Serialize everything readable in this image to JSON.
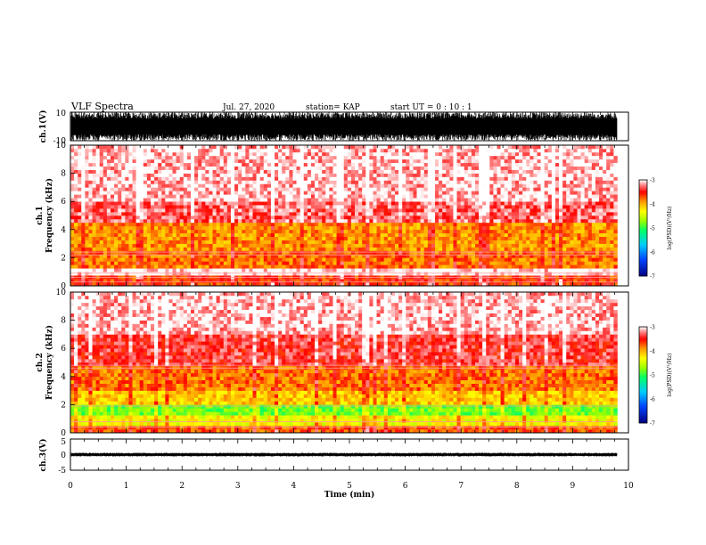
{
  "header": {
    "title": "VLF Spectra",
    "date": "Jul. 27, 2020",
    "station": "station= KAP",
    "start_ut": "start  UT =   0  : 10 : 1"
  },
  "colors": {
    "colormap": [
      "#000080",
      "#0044ff",
      "#00ccff",
      "#00ff66",
      "#99ff00",
      "#ffff00",
      "#ff9900",
      "#ff0000",
      "#ff8888",
      "#ffffff"
    ],
    "trace": "#000000",
    "axis": "#000000"
  },
  "chart_data": [
    {
      "type": "line",
      "panel": "ch1-waveform",
      "ylabel": "ch.1(V)",
      "ylim": [
        -10,
        10
      ],
      "y_ticks": [
        "10",
        "-10"
      ],
      "xlim": [
        0,
        10
      ],
      "description_series": "dense saturated waveform oscillating between about -10 V and 10 V",
      "x": [
        0,
        1,
        2,
        3,
        4,
        5,
        6,
        7,
        8,
        9,
        9.8
      ],
      "y_envelope_min": [
        -10,
        -10,
        -10,
        -10,
        -10,
        -10,
        -10,
        -10,
        -10,
        -10,
        -10
      ],
      "y_envelope_max": [
        10,
        10,
        10,
        10,
        10,
        10,
        10,
        10,
        10,
        10,
        10
      ]
    },
    {
      "type": "heatmap",
      "panel": "ch1-spectrogram",
      "ylabel": "ch.1\nFrequency  (kHz)",
      "ylim": [
        0,
        10
      ],
      "y_ticks": [
        "0",
        "2",
        "4",
        "6",
        "8",
        "10"
      ],
      "xlim": [
        0,
        10
      ],
      "data_end_min": 9.8,
      "colorbar": {
        "label": "log(PSD)(V²/Hz)",
        "range": [
          -7,
          -3
        ],
        "ticks": [
          "-3",
          "-4",
          "-5",
          "-6",
          "-7"
        ]
      },
      "band_levels": [
        {
          "freq_khz": [
            0.0,
            0.8
          ],
          "log_psd": -3.6
        },
        {
          "freq_khz": [
            0.8,
            1.2
          ],
          "log_psd": -3.0
        },
        {
          "freq_khz": [
            1.2,
            2.5
          ],
          "log_psd": -3.8
        },
        {
          "freq_khz": [
            2.5,
            4.5
          ],
          "log_psd": -3.9
        },
        {
          "freq_khz": [
            4.5,
            6.0
          ],
          "log_psd": -3.3
        },
        {
          "freq_khz": [
            6.0,
            10.0
          ],
          "log_psd": -3.1
        }
      ],
      "lines_khz": [
        0.3,
        0.6,
        0.9,
        2.2,
        2.4
      ]
    },
    {
      "type": "heatmap",
      "panel": "ch2-spectrogram",
      "ylabel": "ch.2\nFrequency  (kHz)",
      "ylim": [
        0,
        10
      ],
      "y_ticks": [
        "0",
        "2",
        "4",
        "6",
        "8",
        "10"
      ],
      "xlim": [
        0,
        10
      ],
      "data_end_min": 9.8,
      "colorbar": {
        "label": "log(PSD)(V²/Hz)",
        "range": [
          -7,
          -3
        ],
        "ticks": [
          "-3",
          "-4",
          "-5",
          "-6",
          "-7"
        ]
      },
      "band_levels": [
        {
          "freq_khz": [
            0.0,
            0.6
          ],
          "log_psd": -3.7
        },
        {
          "freq_khz": [
            0.6,
            1.2
          ],
          "log_psd": -4.3
        },
        {
          "freq_khz": [
            1.2,
            2.0
          ],
          "log_psd": -4.8
        },
        {
          "freq_khz": [
            2.0,
            3.0
          ],
          "log_psd": -4.1
        },
        {
          "freq_khz": [
            3.0,
            4.8
          ],
          "log_psd": -3.8
        },
        {
          "freq_khz": [
            4.8,
            7.0
          ],
          "log_psd": -3.4
        },
        {
          "freq_khz": [
            7.0,
            10.0
          ],
          "log_psd": -3.1
        }
      ],
      "lines_khz": [
        0.4,
        0.8,
        1.9,
        4.6,
        4.8
      ]
    },
    {
      "type": "line",
      "panel": "ch3-waveform",
      "ylabel": "ch.3(V)",
      "ylim": [
        -5,
        5
      ],
      "y_ticks": [
        "5",
        "0",
        "-5"
      ],
      "xlim": [
        0,
        10
      ],
      "xlabel": "Time  (min)",
      "x_ticks": [
        "0",
        "1",
        "2",
        "3",
        "4",
        "5",
        "6",
        "7",
        "8",
        "9",
        "10"
      ],
      "x": [
        0,
        1,
        2,
        3,
        4,
        5,
        6,
        7,
        8,
        9,
        9.8
      ],
      "y_envelope_min": [
        -0.6,
        -0.6,
        -0.6,
        -0.6,
        -0.6,
        -0.6,
        -0.6,
        -0.6,
        -0.6,
        -0.6,
        -0.6
      ],
      "y_envelope_max": [
        0.6,
        0.6,
        0.6,
        0.6,
        0.6,
        0.6,
        0.6,
        0.6,
        0.6,
        0.6,
        0.6
      ]
    }
  ]
}
